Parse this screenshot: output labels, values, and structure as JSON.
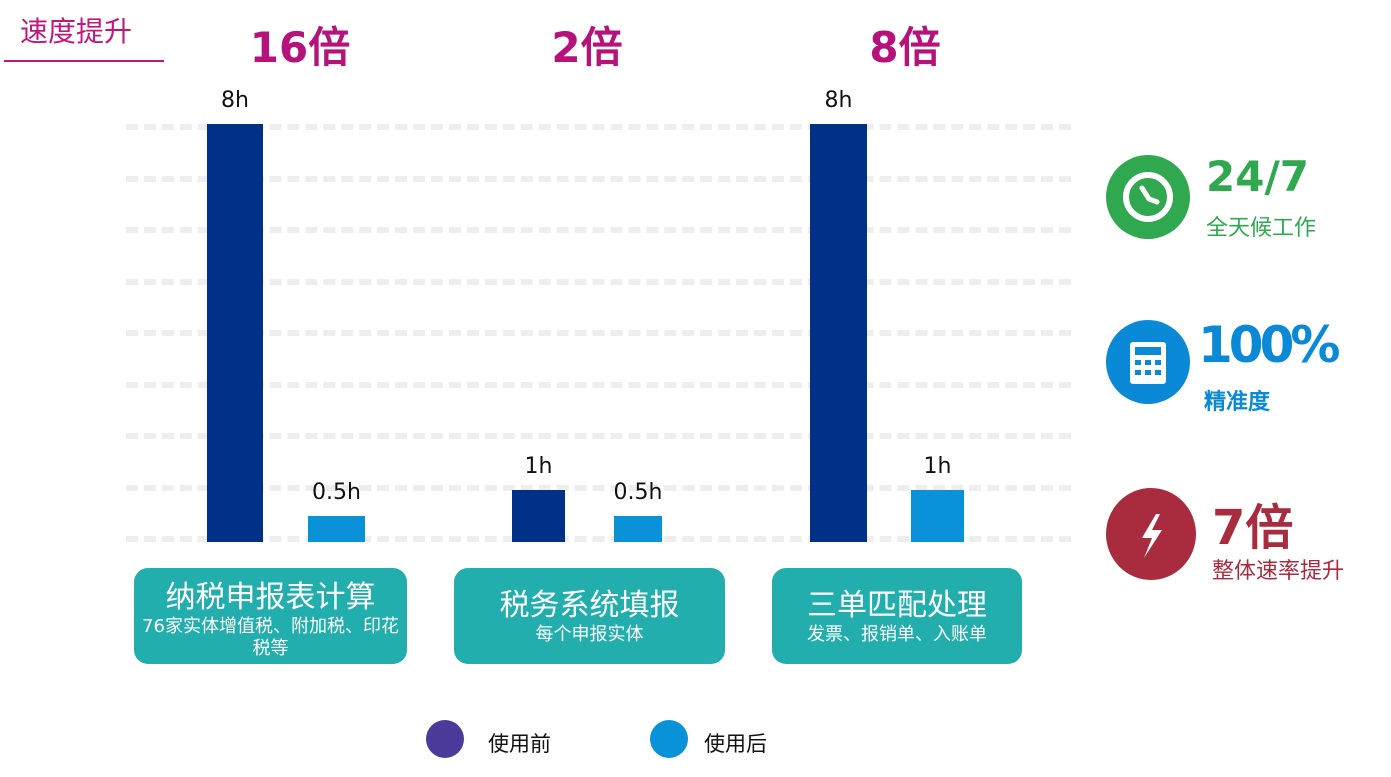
{
  "title": "速度提升",
  "chart_data": {
    "type": "bar",
    "categories": [
      "纳税申报表计算",
      "税务系统填报",
      "三单匹配处理"
    ],
    "category_subtitles": [
      "76家实体增值税、附加税、印花税等",
      "每个申报实体",
      "发票、报销单、入账单"
    ],
    "multipliers": [
      "16倍",
      "2倍",
      "8倍"
    ],
    "series": [
      {
        "name": "使用前",
        "values": [
          8,
          1,
          8
        ],
        "labels": [
          "8h",
          "1h",
          "8h"
        ],
        "color": "#003087",
        "legend_color": "#4b3a9a"
      },
      {
        "name": "使用后",
        "values": [
          0.5,
          0.5,
          1
        ],
        "labels": [
          "0.5h",
          "0.5h",
          "1h"
        ],
        "color": "#0a92d8",
        "legend_color": "#0a92d8"
      }
    ],
    "unit": "h",
    "ylim": [
      0,
      8
    ],
    "grid": true,
    "legend": "bottom"
  },
  "stats": [
    {
      "value": "24/7",
      "label": "全天候工作",
      "icon": "clock-icon",
      "color": "#2fa84f"
    },
    {
      "value": "100%",
      "label": "精准度",
      "icon": "calculator-icon",
      "color": "#0a8ad6"
    },
    {
      "value": "7倍",
      "label": "整体速率提升",
      "icon": "lightning-icon",
      "color": "#a82b3e"
    }
  ]
}
